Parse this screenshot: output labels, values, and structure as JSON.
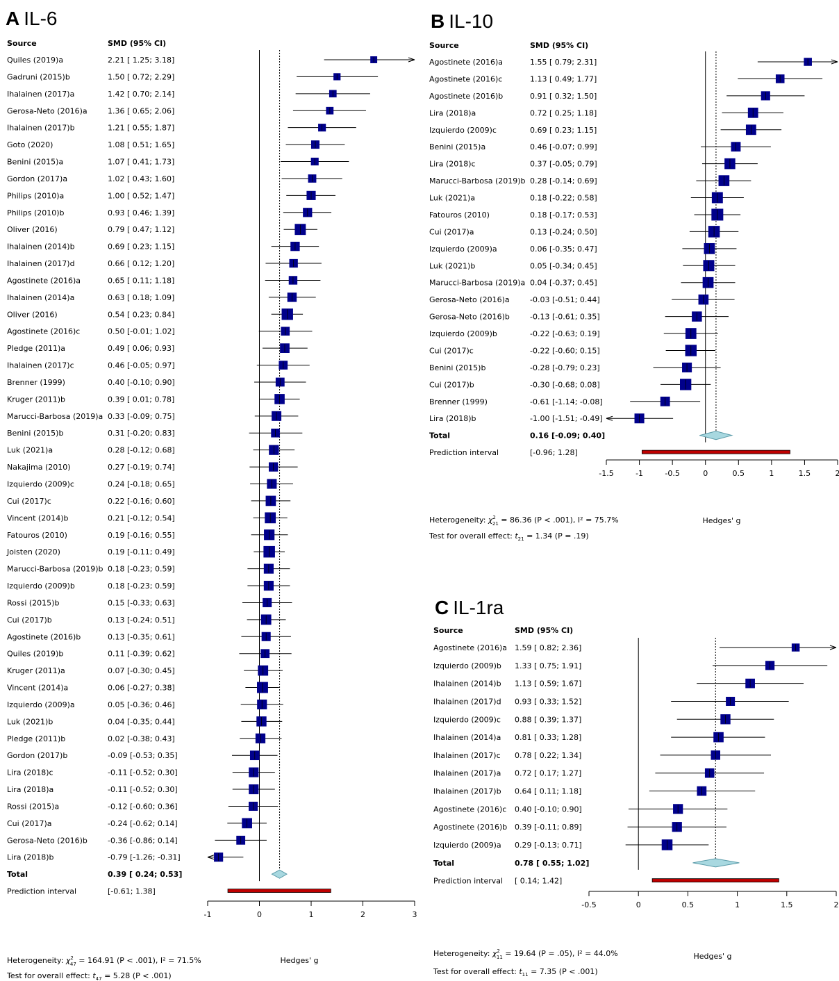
{
  "chart_data": [
    {
      "type": "forest",
      "panel": "A",
      "title": "IL-6",
      "columns": {
        "source": "Source",
        "smd": "SMD (95% CI)"
      },
      "studies": [
        {
          "source": "Quiles (2019)a",
          "ci_text": "2.21 [ 1.25;  3.18]",
          "est": 2.21,
          "lo": 1.25,
          "hi": 3.18
        },
        {
          "source": "Gadruni (2015)b",
          "ci_text": "1.50 [ 0.72;  2.29]",
          "est": 1.5,
          "lo": 0.72,
          "hi": 2.29
        },
        {
          "source": "Ihalainen (2017)a",
          "ci_text": "1.42 [ 0.70;  2.14]",
          "est": 1.42,
          "lo": 0.7,
          "hi": 2.14
        },
        {
          "source": "Gerosa-Neto (2016)a",
          "ci_text": "1.36 [ 0.65;  2.06]",
          "est": 1.36,
          "lo": 0.65,
          "hi": 2.06
        },
        {
          "source": "Ihalainen (2017)b",
          "ci_text": "1.21 [ 0.55;  1.87]",
          "est": 1.21,
          "lo": 0.55,
          "hi": 1.87
        },
        {
          "source": "Goto (2020)",
          "ci_text": "1.08 [ 0.51;  1.65]",
          "est": 1.08,
          "lo": 0.51,
          "hi": 1.65
        },
        {
          "source": "Benini (2015)a",
          "ci_text": "1.07 [ 0.41;  1.73]",
          "est": 1.07,
          "lo": 0.41,
          "hi": 1.73
        },
        {
          "source": "Gordon (2017)a",
          "ci_text": "1.02 [ 0.43;  1.60]",
          "est": 1.02,
          "lo": 0.43,
          "hi": 1.6
        },
        {
          "source": "Philips (2010)a",
          "ci_text": "1.00 [ 0.52;  1.47]",
          "est": 1.0,
          "lo": 0.52,
          "hi": 1.47
        },
        {
          "source": "Philips (2010)b",
          "ci_text": "0.93 [ 0.46;  1.39]",
          "est": 0.93,
          "lo": 0.46,
          "hi": 1.39
        },
        {
          "source": "Oliver (2016)",
          "ci_text": "0.79 [ 0.47;  1.12]",
          "est": 0.79,
          "lo": 0.47,
          "hi": 1.12
        },
        {
          "source": "Ihalainen (2014)b",
          "ci_text": "0.69 [ 0.23;  1.15]",
          "est": 0.69,
          "lo": 0.23,
          "hi": 1.15
        },
        {
          "source": "Ihalainen (2017)d",
          "ci_text": "0.66 [ 0.12;  1.20]",
          "est": 0.66,
          "lo": 0.12,
          "hi": 1.2
        },
        {
          "source": "Agostinete (2016)a",
          "ci_text": "0.65 [ 0.11;  1.18]",
          "est": 0.65,
          "lo": 0.11,
          "hi": 1.18
        },
        {
          "source": "Ihalainen (2014)a",
          "ci_text": "0.63 [ 0.18;  1.09]",
          "est": 0.63,
          "lo": 0.18,
          "hi": 1.09
        },
        {
          "source": "Oliver (2016)",
          "ci_text": "0.54 [ 0.23;  0.84]",
          "est": 0.54,
          "lo": 0.23,
          "hi": 0.84
        },
        {
          "source": "Agostinete (2016)c",
          "ci_text": "0.50 [-0.01;  1.02]",
          "est": 0.5,
          "lo": -0.01,
          "hi": 1.02
        },
        {
          "source": "Pledge (2011)a",
          "ci_text": "0.49 [ 0.06;  0.93]",
          "est": 0.49,
          "lo": 0.06,
          "hi": 0.93
        },
        {
          "source": "Ihalainen (2017)c",
          "ci_text": "0.46 [-0.05;  0.97]",
          "est": 0.46,
          "lo": -0.05,
          "hi": 0.97
        },
        {
          "source": "Brenner (1999)",
          "ci_text": "0.40 [-0.10;  0.90]",
          "est": 0.4,
          "lo": -0.1,
          "hi": 0.9
        },
        {
          "source": "Kruger (2011)b",
          "ci_text": "0.39 [ 0.01;  0.78]",
          "est": 0.39,
          "lo": 0.01,
          "hi": 0.78
        },
        {
          "source": "Marucci-Barbosa (2019)a",
          "ci_text": "0.33 [-0.09;  0.75]",
          "est": 0.33,
          "lo": -0.09,
          "hi": 0.75
        },
        {
          "source": "Benini (2015)b",
          "ci_text": "0.31 [-0.20;  0.83]",
          "est": 0.31,
          "lo": -0.2,
          "hi": 0.83
        },
        {
          "source": "Luk (2021)a",
          "ci_text": "0.28 [-0.12;  0.68]",
          "est": 0.28,
          "lo": -0.12,
          "hi": 0.68
        },
        {
          "source": "Nakajima (2010)",
          "ci_text": "0.27 [-0.19;  0.74]",
          "est": 0.27,
          "lo": -0.19,
          "hi": 0.74
        },
        {
          "source": "Izquierdo (2009)c",
          "ci_text": "0.24 [-0.18;  0.65]",
          "est": 0.24,
          "lo": -0.18,
          "hi": 0.65
        },
        {
          "source": "Cui (2017)c",
          "ci_text": "0.22 [-0.16;  0.60]",
          "est": 0.22,
          "lo": -0.16,
          "hi": 0.6
        },
        {
          "source": "Vincent (2014)b",
          "ci_text": "0.21 [-0.12;  0.54]",
          "est": 0.21,
          "lo": -0.12,
          "hi": 0.54
        },
        {
          "source": "Fatouros (2010)",
          "ci_text": "0.19 [-0.16;  0.55]",
          "est": 0.19,
          "lo": -0.16,
          "hi": 0.55
        },
        {
          "source": "Joisten (2020)",
          "ci_text": "0.19 [-0.11;  0.49]",
          "est": 0.19,
          "lo": -0.11,
          "hi": 0.49
        },
        {
          "source": "Marucci-Barbosa (2019)b",
          "ci_text": "0.18 [-0.23;  0.59]",
          "est": 0.18,
          "lo": -0.23,
          "hi": 0.59
        },
        {
          "source": "Izquierdo (2009)b",
          "ci_text": "0.18 [-0.23;  0.59]",
          "est": 0.18,
          "lo": -0.23,
          "hi": 0.59
        },
        {
          "source": "Rossi (2015)b",
          "ci_text": "0.15 [-0.33;  0.63]",
          "est": 0.15,
          "lo": -0.33,
          "hi": 0.63
        },
        {
          "source": "Cui (2017)b",
          "ci_text": "0.13 [-0.24;  0.51]",
          "est": 0.13,
          "lo": -0.24,
          "hi": 0.51
        },
        {
          "source": "Agostinete (2016)b",
          "ci_text": "0.13 [-0.35;  0.61]",
          "est": 0.13,
          "lo": -0.35,
          "hi": 0.61
        },
        {
          "source": "Quiles (2019)b",
          "ci_text": "0.11 [-0.39;  0.62]",
          "est": 0.11,
          "lo": -0.39,
          "hi": 0.62
        },
        {
          "source": "Kruger (2011)a",
          "ci_text": "0.07 [-0.30;  0.45]",
          "est": 0.07,
          "lo": -0.3,
          "hi": 0.45
        },
        {
          "source": "Vincent (2014)a",
          "ci_text": "0.06 [-0.27;  0.38]",
          "est": 0.06,
          "lo": -0.27,
          "hi": 0.38
        },
        {
          "source": "Izquierdo (2009)a",
          "ci_text": "0.05 [-0.36;  0.46]",
          "est": 0.05,
          "lo": -0.36,
          "hi": 0.46
        },
        {
          "source": "Luk (2021)b",
          "ci_text": "0.04 [-0.35;  0.44]",
          "est": 0.04,
          "lo": -0.35,
          "hi": 0.44
        },
        {
          "source": "Pledge (2011)b",
          "ci_text": "0.02 [-0.38;  0.43]",
          "est": 0.02,
          "lo": -0.38,
          "hi": 0.43
        },
        {
          "source": "Gordon (2017)b",
          "ci_text": "-0.09 [-0.53;  0.35]",
          "est": -0.09,
          "lo": -0.53,
          "hi": 0.35
        },
        {
          "source": "Lira (2018)c",
          "ci_text": "-0.11 [-0.52;  0.30]",
          "est": -0.11,
          "lo": -0.52,
          "hi": 0.3
        },
        {
          "source": "Lira (2018)a",
          "ci_text": "-0.11 [-0.52;  0.30]",
          "est": -0.11,
          "lo": -0.52,
          "hi": 0.3
        },
        {
          "source": "Rossi (2015)a",
          "ci_text": "-0.12 [-0.60;  0.36]",
          "est": -0.12,
          "lo": -0.6,
          "hi": 0.36
        },
        {
          "source": "Cui (2017)a",
          "ci_text": "-0.24 [-0.62;  0.14]",
          "est": -0.24,
          "lo": -0.62,
          "hi": 0.14
        },
        {
          "source": "Gerosa-Neto (2016)b",
          "ci_text": "-0.36 [-0.86;  0.14]",
          "est": -0.36,
          "lo": -0.86,
          "hi": 0.14
        },
        {
          "source": "Lira (2018)b",
          "ci_text": "-0.79 [-1.26; -0.31]",
          "est": -0.79,
          "lo": -1.26,
          "hi": -0.31
        }
      ],
      "total": {
        "label": "Total",
        "ci_text": "0.39 [ 0.24;  0.53]",
        "est": 0.39,
        "lo": 0.24,
        "hi": 0.53
      },
      "prediction": {
        "label": "Prediction interval",
        "ci_text": "[-0.61;  1.38]",
        "lo": -0.61,
        "hi": 1.38
      },
      "xlim": [
        -1,
        3
      ],
      "ticks": [
        -1,
        0,
        1,
        2,
        3
      ],
      "xlabel": "Hedges' g",
      "heterogeneity": {
        "prefix": "Heterogeneity: ",
        "chi": "χ",
        "sup": "2",
        "sub": "47",
        "rest": " = 164.91 (P < .001), I² = 71.5%"
      },
      "overall": {
        "prefix": "Test for overall effect: ",
        "t": "t",
        "sub": "47",
        "rest": " = 5.28 (P < .001)"
      }
    },
    {
      "type": "forest",
      "panel": "B",
      "title": "IL-10",
      "columns": {
        "source": "Source",
        "smd": "SMD (95% CI)"
      },
      "studies": [
        {
          "source": "Agostinete (2016)a",
          "ci_text": "1.55 [ 0.79;  2.31]",
          "est": 1.55,
          "lo": 0.79,
          "hi": 2.31
        },
        {
          "source": "Agostinete (2016)c",
          "ci_text": "1.13 [ 0.49;  1.77]",
          "est": 1.13,
          "lo": 0.49,
          "hi": 1.77
        },
        {
          "source": "Agostinete (2016)b",
          "ci_text": "0.91 [ 0.32;  1.50]",
          "est": 0.91,
          "lo": 0.32,
          "hi": 1.5
        },
        {
          "source": "Lira (2018)a",
          "ci_text": "0.72 [ 0.25;  1.18]",
          "est": 0.72,
          "lo": 0.25,
          "hi": 1.18
        },
        {
          "source": "Izquierdo (2009)c",
          "ci_text": "0.69 [ 0.23;  1.15]",
          "est": 0.69,
          "lo": 0.23,
          "hi": 1.15
        },
        {
          "source": "Benini (2015)a",
          "ci_text": "0.46 [-0.07;  0.99]",
          "est": 0.46,
          "lo": -0.07,
          "hi": 0.99
        },
        {
          "source": "Lira (2018)c",
          "ci_text": "0.37 [-0.05;  0.79]",
          "est": 0.37,
          "lo": -0.05,
          "hi": 0.79
        },
        {
          "source": "Marucci-Barbosa (2019)b",
          "ci_text": "0.28 [-0.14;  0.69]",
          "est": 0.28,
          "lo": -0.14,
          "hi": 0.69
        },
        {
          "source": "Luk (2021)a",
          "ci_text": "0.18 [-0.22;  0.58]",
          "est": 0.18,
          "lo": -0.22,
          "hi": 0.58
        },
        {
          "source": "Fatouros (2010)",
          "ci_text": "0.18 [-0.17;  0.53]",
          "est": 0.18,
          "lo": -0.17,
          "hi": 0.53
        },
        {
          "source": "Cui (2017)a",
          "ci_text": "0.13 [-0.24;  0.50]",
          "est": 0.13,
          "lo": -0.24,
          "hi": 0.5
        },
        {
          "source": "Izquierdo (2009)a",
          "ci_text": "0.06 [-0.35;  0.47]",
          "est": 0.06,
          "lo": -0.35,
          "hi": 0.47
        },
        {
          "source": "Luk (2021)b",
          "ci_text": "0.05 [-0.34;  0.45]",
          "est": 0.05,
          "lo": -0.34,
          "hi": 0.45
        },
        {
          "source": "Marucci-Barbosa (2019)a",
          "ci_text": "0.04 [-0.37;  0.45]",
          "est": 0.04,
          "lo": -0.37,
          "hi": 0.45
        },
        {
          "source": "Gerosa-Neto (2016)a",
          "ci_text": "-0.03 [-0.51;  0.44]",
          "est": -0.03,
          "lo": -0.51,
          "hi": 0.44
        },
        {
          "source": "Gerosa-Neto (2016)b",
          "ci_text": "-0.13 [-0.61;  0.35]",
          "est": -0.13,
          "lo": -0.61,
          "hi": 0.35
        },
        {
          "source": "Izquierdo (2009)b",
          "ci_text": "-0.22 [-0.63;  0.19]",
          "est": -0.22,
          "lo": -0.63,
          "hi": 0.19
        },
        {
          "source": "Cui (2017)c",
          "ci_text": "-0.22 [-0.60;  0.15]",
          "est": -0.22,
          "lo": -0.6,
          "hi": 0.15
        },
        {
          "source": "Benini (2015)b",
          "ci_text": "-0.28 [-0.79;  0.23]",
          "est": -0.28,
          "lo": -0.79,
          "hi": 0.23
        },
        {
          "source": "Cui (2017)b",
          "ci_text": "-0.30 [-0.68;  0.08]",
          "est": -0.3,
          "lo": -0.68,
          "hi": 0.08
        },
        {
          "source": "Brenner (1999)",
          "ci_text": "-0.61 [-1.14; -0.08]",
          "est": -0.61,
          "lo": -1.14,
          "hi": -0.08
        },
        {
          "source": "Lira (2018)b",
          "ci_text": "-1.00 [-1.51; -0.49]",
          "est": -1.0,
          "lo": -1.51,
          "hi": -0.49
        }
      ],
      "total": {
        "label": "Total",
        "ci_text": "0.16 [-0.09;  0.40]",
        "est": 0.16,
        "lo": -0.09,
        "hi": 0.4
      },
      "prediction": {
        "label": "Prediction interval",
        "ci_text": "[-0.96;  1.28]",
        "lo": -0.96,
        "hi": 1.28
      },
      "xlim": [
        -1.5,
        2
      ],
      "ticks": [
        -1.5,
        -1,
        -0.5,
        0,
        0.5,
        1,
        1.5,
        2
      ],
      "xlabel": "Hedges' g",
      "heterogeneity": {
        "prefix": "Heterogeneity: ",
        "chi": "χ",
        "sup": "2",
        "sub": "21",
        "rest": " = 86.36 (P < .001), I² = 75.7%"
      },
      "overall": {
        "prefix": "Test for overall effect: ",
        "t": "t",
        "sub": "21",
        "rest": " = 1.34 (P = .19)"
      }
    },
    {
      "type": "forest",
      "panel": "C",
      "title": "IL-1ra",
      "columns": {
        "source": "Source",
        "smd": "SMD (95% CI)"
      },
      "studies": [
        {
          "source": "Agostinete (2016)a",
          "ci_text": "1.59 [ 0.82;  2.36]",
          "est": 1.59,
          "lo": 0.82,
          "hi": 2.36
        },
        {
          "source": "Izquierdo (2009)b",
          "ci_text": "1.33 [ 0.75;  1.91]",
          "est": 1.33,
          "lo": 0.75,
          "hi": 1.91
        },
        {
          "source": "Ihalainen (2014)b",
          "ci_text": "1.13 [ 0.59;  1.67]",
          "est": 1.13,
          "lo": 0.59,
          "hi": 1.67
        },
        {
          "source": "Ihalainen (2017)d",
          "ci_text": "0.93 [ 0.33;  1.52]",
          "est": 0.93,
          "lo": 0.33,
          "hi": 1.52
        },
        {
          "source": "Izquierdo (2009)c",
          "ci_text": "0.88 [ 0.39;  1.37]",
          "est": 0.88,
          "lo": 0.39,
          "hi": 1.37
        },
        {
          "source": "Ihalainen (2014)a",
          "ci_text": "0.81 [ 0.33;  1.28]",
          "est": 0.81,
          "lo": 0.33,
          "hi": 1.28
        },
        {
          "source": "Ihalainen (2017)c",
          "ci_text": "0.78 [ 0.22;  1.34]",
          "est": 0.78,
          "lo": 0.22,
          "hi": 1.34
        },
        {
          "source": "Ihalainen (2017)a",
          "ci_text": "0.72 [ 0.17;  1.27]",
          "est": 0.72,
          "lo": 0.17,
          "hi": 1.27
        },
        {
          "source": "Ihalainen (2017)b",
          "ci_text": "0.64 [ 0.11;  1.18]",
          "est": 0.64,
          "lo": 0.11,
          "hi": 1.18
        },
        {
          "source": "Agostinete (2016)c",
          "ci_text": "0.40 [-0.10;  0.90]",
          "est": 0.4,
          "lo": -0.1,
          "hi": 0.9
        },
        {
          "source": "Agostinete (2016)b",
          "ci_text": "0.39 [-0.11;  0.89]",
          "est": 0.39,
          "lo": -0.11,
          "hi": 0.89
        },
        {
          "source": "Izquierdo (2009)a",
          "ci_text": "0.29 [-0.13;  0.71]",
          "est": 0.29,
          "lo": -0.13,
          "hi": 0.71
        }
      ],
      "total": {
        "label": "Total",
        "ci_text": "0.78 [ 0.55;  1.02]",
        "est": 0.78,
        "lo": 0.55,
        "hi": 1.02
      },
      "prediction": {
        "label": "Prediction interval",
        "ci_text": "[ 0.14;  1.42]",
        "lo": 0.14,
        "hi": 1.42
      },
      "xlim": [
        -0.5,
        2
      ],
      "ticks": [
        -0.5,
        0,
        0.5,
        1,
        1.5,
        2
      ],
      "xlabel": "Hedges' g",
      "heterogeneity": {
        "prefix": "Heterogeneity: ",
        "chi": "χ",
        "sup": "2",
        "sub": "11",
        "rest": " = 19.64 (P = .05), I² = 44.0%"
      },
      "overall": {
        "prefix": "Test for overall effect: ",
        "t": "t",
        "sub": "11",
        "rest": " = 7.35 (P < .001)"
      }
    }
  ],
  "colors": {
    "marker": "#00008B",
    "diamond_fill": "#A8D8E0",
    "diamond_stroke": "#5A9AA8",
    "prediction": "#C00000",
    "axis": "#000000"
  }
}
